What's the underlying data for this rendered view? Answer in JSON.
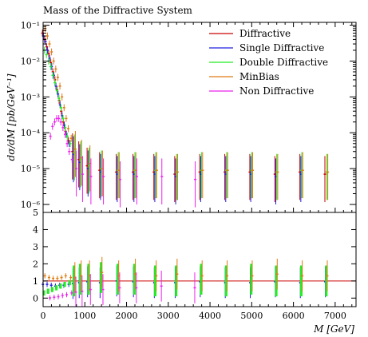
{
  "chart_data": {
    "type": "scatter",
    "title": "Mass of the Diffractive System",
    "xlabel": "M [GeV]",
    "ylabel": "dσ/dM [pb/GeV⁻¹]",
    "xlim": [
      0,
      7500
    ],
    "ylim": [
      6e-07,
      0.12
    ],
    "yscale": "log",
    "ratio_ylim": [
      -0.5,
      5
    ],
    "x_ticks": [
      "0",
      "1000",
      "2000",
      "3000",
      "4000",
      "5000",
      "6000",
      "7000"
    ],
    "x_tick_values": [
      0,
      1000,
      2000,
      3000,
      4000,
      5000,
      6000,
      7000
    ],
    "y_ticks": [
      "10⁻¹",
      "10⁻²",
      "10⁻³",
      "10⁻⁴",
      "10⁻⁵",
      "10⁻⁶"
    ],
    "y_tick_values": [
      0.1,
      0.01,
      0.001,
      0.0001,
      1e-05,
      1e-06
    ],
    "ratio_ticks": [
      "0",
      "1",
      "2",
      "3",
      "4",
      "5"
    ],
    "ratio_tick_values": [
      0,
      1,
      2,
      3,
      4,
      5
    ],
    "legend_position": "top-right",
    "series": [
      {
        "name": "Diffractive",
        "color": "#cc0000",
        "points": [
          [
            30,
            0.06
          ],
          [
            80,
            0.04
          ],
          [
            130,
            0.025
          ],
          [
            180,
            0.016
          ],
          [
            230,
            0.009
          ],
          [
            280,
            0.005
          ],
          [
            330,
            0.003
          ],
          [
            380,
            0.0016
          ],
          [
            430,
            0.0008
          ],
          [
            480,
            0.0004
          ],
          [
            530,
            0.0002
          ],
          [
            580,
            0.00011
          ],
          [
            650,
            6e-05
          ],
          [
            750,
            3e-05
          ],
          [
            900,
            1.8e-05
          ],
          [
            1100,
            1.2e-05
          ],
          [
            1400,
            9e-06
          ],
          [
            1800,
            8e-06
          ],
          [
            2200,
            8e-06
          ],
          [
            2700,
            8e-06
          ],
          [
            3200,
            7e-06
          ],
          [
            3800,
            8e-06
          ],
          [
            4400,
            8e-06
          ],
          [
            5000,
            8e-06
          ],
          [
            5600,
            7e-06
          ],
          [
            6200,
            8e-06
          ],
          [
            6800,
            7e-06
          ]
        ]
      },
      {
        "name": "Single Diffractive",
        "color": "#1f1fe0",
        "points": [
          [
            30,
            0.05
          ],
          [
            80,
            0.035
          ],
          [
            130,
            0.02
          ],
          [
            180,
            0.012
          ],
          [
            230,
            0.007
          ],
          [
            280,
            0.004
          ],
          [
            330,
            0.002
          ],
          [
            380,
            0.0012
          ],
          [
            430,
            0.0006
          ],
          [
            480,
            0.0003
          ],
          [
            530,
            0.00016
          ],
          [
            580,
            9e-05
          ],
          [
            650,
            5e-05
          ],
          [
            750,
            2.5e-05
          ],
          [
            900,
            1.5e-05
          ],
          [
            1100,
            1e-05
          ],
          [
            1400,
            8e-06
          ],
          [
            1800,
            7e-06
          ],
          [
            2200,
            7e-06
          ],
          [
            2700,
            7e-06
          ],
          [
            3200,
            6e-06
          ],
          [
            3800,
            7e-06
          ],
          [
            4400,
            7e-06
          ],
          [
            5000,
            7e-06
          ],
          [
            5600,
            6e-06
          ],
          [
            6200,
            7e-06
          ]
        ]
      },
      {
        "name": "Double Diffractive",
        "color": "#22ee22",
        "points": [
          [
            30,
            0.02
          ],
          [
            80,
            0.015
          ],
          [
            130,
            0.01
          ],
          [
            180,
            0.007
          ],
          [
            230,
            0.004
          ],
          [
            280,
            0.0025
          ],
          [
            330,
            0.0015
          ],
          [
            380,
            0.0009
          ],
          [
            430,
            0.0005
          ],
          [
            480,
            0.00025
          ],
          [
            530,
            0.00014
          ],
          [
            580,
            8e-05
          ],
          [
            650,
            5e-05
          ],
          [
            750,
            2.8e-05
          ],
          [
            900,
            1.8e-05
          ],
          [
            1100,
            1.2e-05
          ],
          [
            1400,
            1e-05
          ],
          [
            1800,
            9e-06
          ],
          [
            2200,
            9e-06
          ],
          [
            2700,
            9e-06
          ],
          [
            3200,
            8e-06
          ],
          [
            3800,
            9e-06
          ],
          [
            4400,
            9e-06
          ],
          [
            5000,
            9e-06
          ],
          [
            5600,
            8e-06
          ],
          [
            6200,
            9e-06
          ],
          [
            6800,
            8e-06
          ]
        ]
      },
      {
        "name": "MinBias",
        "color": "#e07a10",
        "points": [
          [
            30,
            0.08
          ],
          [
            80,
            0.05
          ],
          [
            130,
            0.03
          ],
          [
            180,
            0.018
          ],
          [
            230,
            0.01
          ],
          [
            280,
            0.006
          ],
          [
            330,
            0.0035
          ],
          [
            380,
            0.002
          ],
          [
            430,
            0.001
          ],
          [
            480,
            0.0005
          ],
          [
            530,
            0.00025
          ],
          [
            580,
            0.00013
          ],
          [
            650,
            7e-05
          ],
          [
            750,
            3.5e-05
          ],
          [
            900,
            2e-05
          ],
          [
            1100,
            1.4e-05
          ],
          [
            1400,
            1e-05
          ],
          [
            1800,
            9e-06
          ],
          [
            2200,
            9e-06
          ],
          [
            2700,
            9e-06
          ],
          [
            3200,
            8e-06
          ],
          [
            3800,
            9e-06
          ],
          [
            4400,
            9e-06
          ],
          [
            5000,
            9e-06
          ],
          [
            5600,
            8e-06
          ],
          [
            6200,
            9e-06
          ],
          [
            6800,
            8e-06
          ]
        ]
      },
      {
        "name": "Non Diffractive",
        "color": "#ee22ee",
        "points": [
          [
            130,
            8e-05
          ],
          [
            180,
            0.00015
          ],
          [
            230,
            0.0002
          ],
          [
            280,
            0.00025
          ],
          [
            330,
            0.00025
          ],
          [
            380,
            0.0002
          ],
          [
            430,
            0.00014
          ],
          [
            480,
            9e-05
          ],
          [
            530,
            5e-05
          ],
          [
            580,
            3e-05
          ],
          [
            650,
            1.8e-05
          ],
          [
            750,
            1e-05
          ],
          [
            900,
            7e-06
          ],
          [
            1100,
            6e-06
          ],
          [
            1400,
            6e-06
          ],
          [
            1800,
            5e-06
          ],
          [
            2200,
            6e-06
          ],
          [
            2800,
            6e-06
          ],
          [
            3600,
            5e-06
          ]
        ]
      }
    ],
    "ratio_series": [
      {
        "name": "Single Diffractive",
        "color": "#1f1fe0",
        "points": [
          [
            30,
            0.8
          ],
          [
            130,
            0.8
          ],
          [
            230,
            0.75
          ],
          [
            330,
            0.7
          ],
          [
            430,
            0.75
          ],
          [
            530,
            0.75
          ],
          [
            650,
            0.8
          ],
          [
            750,
            0.85
          ],
          [
            900,
            0.9
          ],
          [
            1100,
            0.95
          ],
          [
            1400,
            0.9
          ],
          [
            1800,
            1.0
          ],
          [
            2200,
            0.95
          ],
          [
            2700,
            0.9
          ],
          [
            3200,
            0.9
          ],
          [
            3800,
            0.95
          ],
          [
            4400,
            0.9
          ],
          [
            5000,
            0.9
          ],
          [
            5600,
            0.95
          ],
          [
            6200,
            0.9
          ],
          [
            6800,
            0.95
          ]
        ]
      },
      {
        "name": "Double Diffractive",
        "color": "#22ee22",
        "points": [
          [
            30,
            0.3
          ],
          [
            130,
            0.4
          ],
          [
            230,
            0.5
          ],
          [
            330,
            0.6
          ],
          [
            430,
            0.7
          ],
          [
            530,
            0.8
          ],
          [
            650,
            0.9
          ],
          [
            750,
            1.0
          ],
          [
            900,
            1.1
          ],
          [
            1100,
            1.1
          ],
          [
            1400,
            1.2
          ],
          [
            1800,
            1.1
          ],
          [
            2200,
            1.1
          ],
          [
            2700,
            1.0
          ],
          [
            3200,
            1.0
          ],
          [
            3800,
            1.1
          ],
          [
            4400,
            1.0
          ],
          [
            5000,
            1.1
          ],
          [
            5600,
            1.0
          ],
          [
            6200,
            1.0
          ],
          [
            6800,
            1.0
          ]
        ]
      },
      {
        "name": "MinBias",
        "color": "#e07a10",
        "points": [
          [
            30,
            1.3
          ],
          [
            130,
            1.2
          ],
          [
            230,
            1.15
          ],
          [
            330,
            1.15
          ],
          [
            430,
            1.2
          ],
          [
            530,
            1.3
          ],
          [
            650,
            1.2
          ],
          [
            750,
            1.2
          ],
          [
            900,
            1.3
          ],
          [
            1100,
            1.3
          ],
          [
            1400,
            1.5
          ],
          [
            1800,
            1.3
          ],
          [
            2200,
            1.4
          ],
          [
            2700,
            1.3
          ],
          [
            3200,
            1.4
          ],
          [
            3800,
            1.3
          ],
          [
            4400,
            1.3
          ],
          [
            5000,
            1.3
          ],
          [
            5600,
            1.4
          ],
          [
            6200,
            1.3
          ],
          [
            6800,
            1.3
          ]
        ]
      },
      {
        "name": "Non Diffractive",
        "color": "#ee22ee",
        "points": [
          [
            130,
            0.01
          ],
          [
            230,
            0.05
          ],
          [
            330,
            0.08
          ],
          [
            430,
            0.15
          ],
          [
            530,
            0.2
          ],
          [
            650,
            0.3
          ],
          [
            750,
            0.35
          ],
          [
            900,
            0.4
          ],
          [
            1100,
            0.5
          ],
          [
            1400,
            0.5
          ],
          [
            1800,
            0.6
          ],
          [
            2200,
            0.6
          ],
          [
            2800,
            0.7
          ],
          [
            3600,
            0.6
          ]
        ]
      }
    ]
  }
}
